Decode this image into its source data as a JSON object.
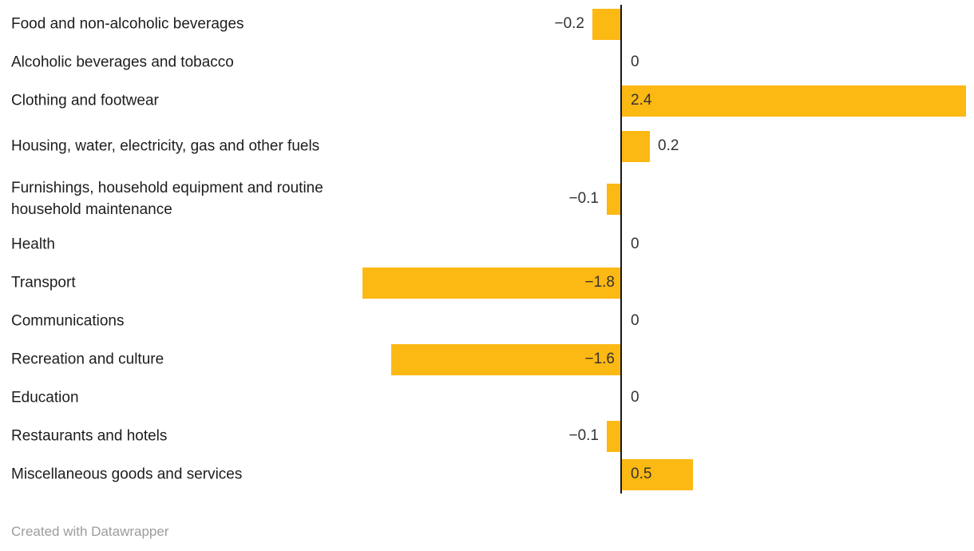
{
  "chart_data": {
    "type": "bar",
    "orientation": "horizontal",
    "title": "",
    "xlabel": "",
    "ylabel": "",
    "xlim": [
      -1.8,
      2.45
    ],
    "grid": false,
    "legend": "none",
    "zero_baseline": true,
    "bar_color": "#fcb813",
    "categories": [
      "Food and non-alcoholic beverages",
      "Alcoholic beverages and tobacco",
      "Clothing and footwear",
      "Housing, water, electricity, gas and other fuels",
      "Furnishings, household equipment and routine household maintenance",
      "Health",
      "Transport",
      "Communications",
      "Recreation and culture",
      "Education",
      "Restaurants and hotels",
      "Miscellaneous goods and services"
    ],
    "values": [
      -0.2,
      0,
      2.4,
      0.2,
      -0.1,
      0,
      -1.8,
      0,
      -1.6,
      0,
      -0.1,
      0.5
    ],
    "value_labels": [
      "−0.2",
      "0",
      "2.4",
      "0.2",
      "−0.1",
      "0",
      "−1.8",
      "0",
      "−1.6",
      "0",
      "−0.1",
      "0.5"
    ]
  },
  "footer": {
    "credit": "Created with Datawrapper"
  },
  "colors": {
    "bar": "#fcb813",
    "axis_line": "#18181a",
    "category_text": "#1d1d1d",
    "value_text": "#333333",
    "credit_text": "#9c9c9c"
  }
}
